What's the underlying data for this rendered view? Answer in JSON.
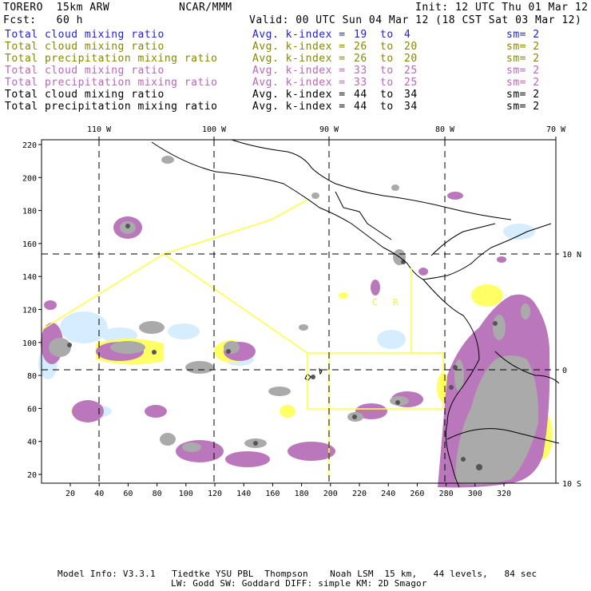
{
  "header": {
    "model": "TORERO  15km ARW",
    "center": "NCAR/MMM",
    "init": "Init: 12 UTC Thu 01 Mar 12",
    "fcst": "Fcst:   60 h",
    "valid": "Valid: 00 UTC Sun 04 Mar 12 (18 CST Sat 03 Mar 12)"
  },
  "legend": [
    {
      "name": "Total cloud mixing ratio",
      "idx": "Avg. k-index = ",
      "from": "19",
      "to": "4",
      "sm": "sm= 2",
      "color": "#2222cc"
    },
    {
      "name": "Total cloud mixing ratio",
      "idx": "Avg. k-index = ",
      "from": "26",
      "to": "20",
      "sm": "sm= 2",
      "color": "#888800"
    },
    {
      "name": "Total precipitation mixing ratio",
      "idx": "Avg. k-index = ",
      "from": "26",
      "to": "20",
      "sm": "sm= 2",
      "color": "#888800"
    },
    {
      "name": "Total cloud mixing ratio",
      "idx": "Avg. k-index = ",
      "from": "33",
      "to": "25",
      "sm": "sm= 2",
      "color": "#bb66bb"
    },
    {
      "name": "Total precipitation mixing ratio",
      "idx": "Avg. k-index = ",
      "from": "33",
      "to": "25",
      "sm": "sm= 2",
      "color": "#bb66bb"
    },
    {
      "name": "Total cloud mixing ratio",
      "idx": "Avg. k-index = ",
      "from": "44",
      "to": "34",
      "sm": "sm= 2",
      "color": "#000000"
    },
    {
      "name": "Total precipitation mixing ratio",
      "idx": "Avg. k-index = ",
      "from": "44",
      "to": "34",
      "sm": "sm= 2",
      "color": "#000000"
    }
  ],
  "map": {
    "lon_labels": [
      "110 W",
      "100 W",
      "90 W",
      "80 W",
      "70 W"
    ],
    "lat_labels": [
      "10 N",
      "0",
      "10 S"
    ],
    "y_ticks": [
      "220",
      "200",
      "180",
      "160",
      "140",
      "120",
      "100",
      "80",
      "60",
      "40",
      "20"
    ],
    "x_ticks": [
      "20",
      "40",
      "60",
      "80",
      "100",
      "120",
      "140",
      "160",
      "180",
      "200",
      "220",
      "240",
      "260",
      "280",
      "300",
      "320"
    ],
    "box_labels": [
      "C",
      "R"
    ],
    "colors": {
      "cloud_low": "#ddeeff",
      "yellow": "#ffff66",
      "purple": "#bb77bb",
      "gray": "#aaaaaa",
      "dark_gray": "#555555",
      "coast": "#000000",
      "box_line": "#ffff44",
      "grid": "#000000"
    }
  },
  "footer": {
    "line1": "Model Info: V3.3.1   Tiedtke YSU PBL  Thompson    Noah LSM  15 km,   44 levels,   84 sec",
    "line2": "LW: Godd SW: Goddard DIFF: simple KM: 2D Smagor"
  }
}
